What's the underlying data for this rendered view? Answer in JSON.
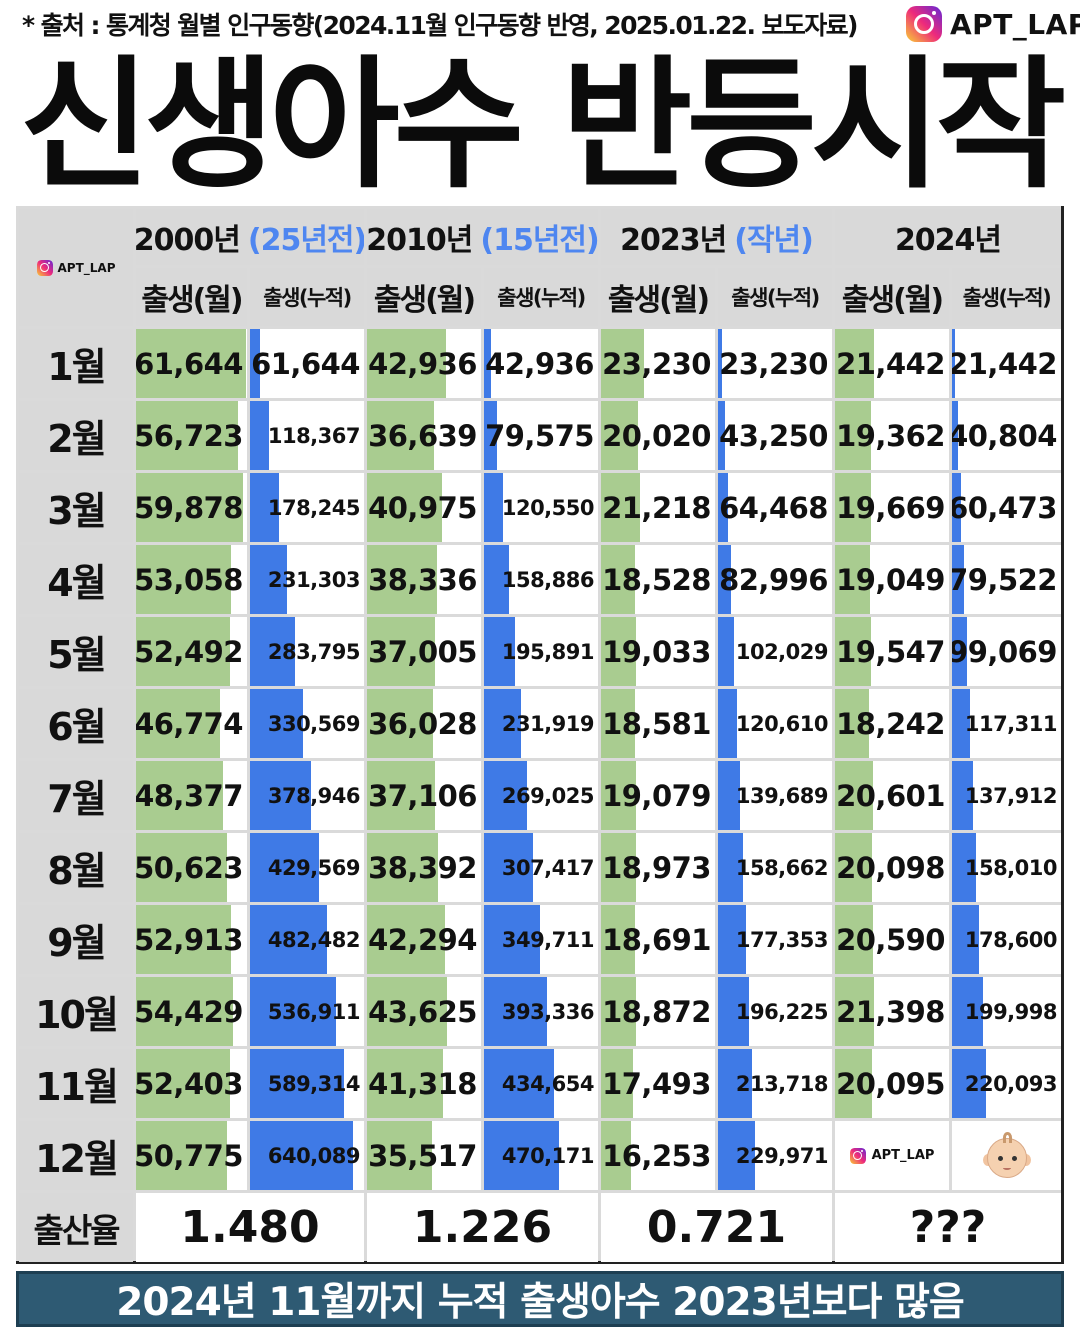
{
  "header": {
    "source": "* 출처 : 통계청 월별 인구동향(2024.11월 인구동향 반영, 2025.01.22. 보도자료)",
    "brand": "APT_LAP",
    "title": "신생아수 반등시작"
  },
  "table": {
    "corner_brand": "APT_LAP",
    "sub_headers": [
      "출생(월)",
      "출생(누적)"
    ],
    "years": [
      {
        "year": "2000년",
        "note": "(25년전)"
      },
      {
        "year": "2010년",
        "note": "(15년전)"
      },
      {
        "year": "2023년",
        "note": "(작년)"
      },
      {
        "year": "2024년",
        "note": ""
      }
    ],
    "months": [
      "1월",
      "2월",
      "3월",
      "4월",
      "5월",
      "6월",
      "7월",
      "8월",
      "9월",
      "10월",
      "11월",
      "12월"
    ],
    "rate_label": "출산율",
    "rates": [
      "1.480",
      "1.226",
      "0.721",
      "???"
    ],
    "end_brand": "APT_LAP",
    "end_icon": "baby-icon"
  },
  "chart_data": {
    "type": "table",
    "title": "신생아수 반등시작",
    "columns": [
      "2000년",
      "2010년",
      "2023년",
      "2024년"
    ],
    "categories": [
      "1월",
      "2월",
      "3월",
      "4월",
      "5월",
      "6월",
      "7월",
      "8월",
      "9월",
      "10월",
      "11월",
      "12월"
    ],
    "series": [
      {
        "name": "2000년",
        "monthly": [
          "61,644",
          "56,723",
          "59,878",
          "53,058",
          "52,492",
          "46,774",
          "48,377",
          "50,623",
          "52,913",
          "54,429",
          "52,403",
          "50,775"
        ],
        "cumulative": [
          "61,644",
          "118,367",
          "178,245",
          "231,303",
          "283,795",
          "330,569",
          "378,946",
          "429,569",
          "482,482",
          "536,911",
          "589,314",
          "640,089"
        ]
      },
      {
        "name": "2010년",
        "monthly": [
          "42,936",
          "36,639",
          "40,975",
          "38,336",
          "37,005",
          "36,028",
          "37,106",
          "38,392",
          "42,294",
          "43,625",
          "41,318",
          "35,517"
        ],
        "cumulative": [
          "42,936",
          "79,575",
          "120,550",
          "158,886",
          "195,891",
          "231,919",
          "269,025",
          "307,417",
          "349,711",
          "393,336",
          "434,654",
          "470,171"
        ]
      },
      {
        "name": "2023년",
        "monthly": [
          "23,230",
          "20,020",
          "21,218",
          "18,528",
          "19,033",
          "18,581",
          "19,079",
          "18,973",
          "18,691",
          "18,872",
          "17,493",
          "16,253"
        ],
        "cumulative": [
          "23,230",
          "43,250",
          "64,468",
          "82,996",
          "102,029",
          "120,610",
          "139,689",
          "158,662",
          "177,353",
          "196,225",
          "213,718",
          "229,971"
        ]
      },
      {
        "name": "2024년",
        "monthly": [
          "21,442",
          "19,362",
          "19,669",
          "19,049",
          "19,547",
          "18,242",
          "20,601",
          "20,098",
          "20,590",
          "21,398",
          "20,095"
        ],
        "cumulative": [
          "21,442",
          "40,804",
          "60,473",
          "79,522",
          "99,069",
          "117,311",
          "137,912",
          "158,010",
          "178,600",
          "199,998",
          "220,093"
        ]
      }
    ],
    "monthly_bar_color": "#a9cc90",
    "cumulative_bar_color": "#3f7ae6",
    "header_accent_color": "#4e86f0"
  },
  "banner": "2024년 11월까지 누적 출생아수 2023년보다 많음"
}
